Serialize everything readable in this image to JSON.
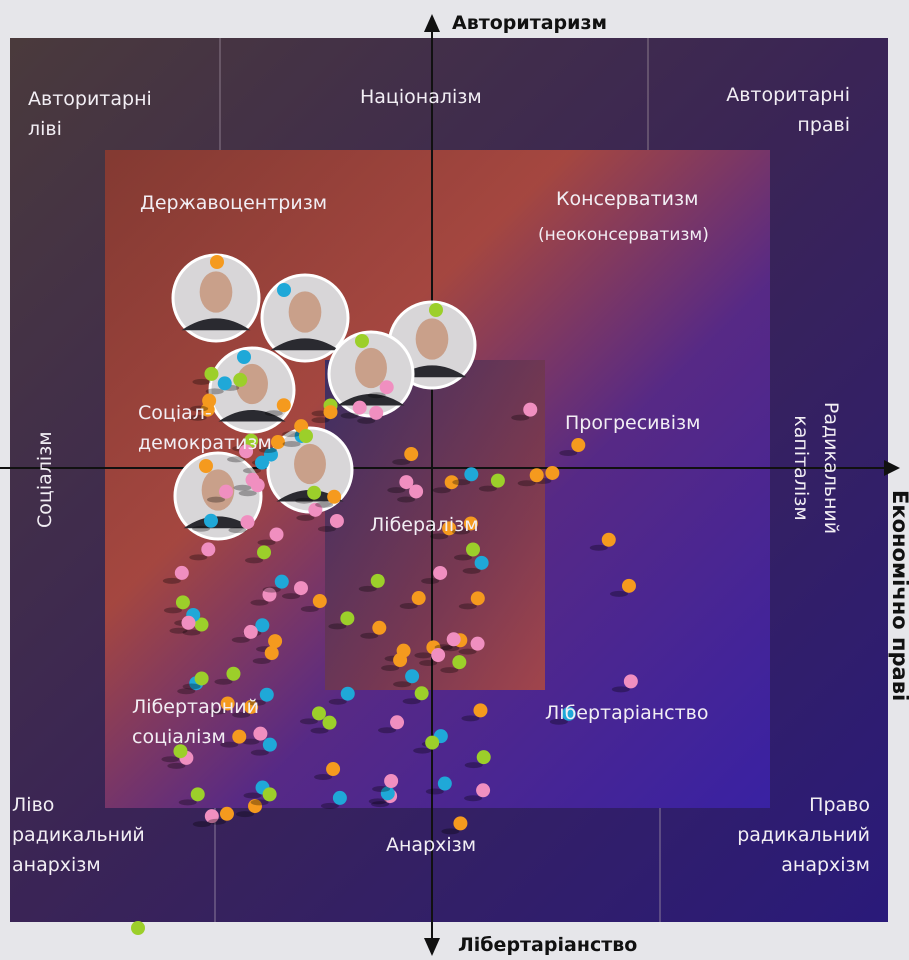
{
  "axes": {
    "top": "Авторитаризм",
    "bottom": "Лібертаріанство",
    "left": "Соціалізм",
    "right": "Економічно праві",
    "right_inner": "Радикальний капіталізм"
  },
  "regions": {
    "authoritarian_left": "Авторитарні ліві",
    "nationalism": "Націоналізм",
    "authoritarian_right": "Авторитарні праві",
    "statism": "Державоцентризм",
    "conservatism": "Консерватизм",
    "neoconservatism": "(неоконсерватизм)",
    "social_democracy": "Соціал-демократизм",
    "progressivism": "Прогресивізм",
    "liberalism": "Лібералізм",
    "libertarian_socialism": "Лібертарний соціалізм",
    "libertarianism": "Лібертаріанство",
    "left_anarchism": "Ліво радикальний анархізм",
    "anarchism": "Анархізм",
    "right_anarchism": "Право радикальний анархізм"
  }
}
